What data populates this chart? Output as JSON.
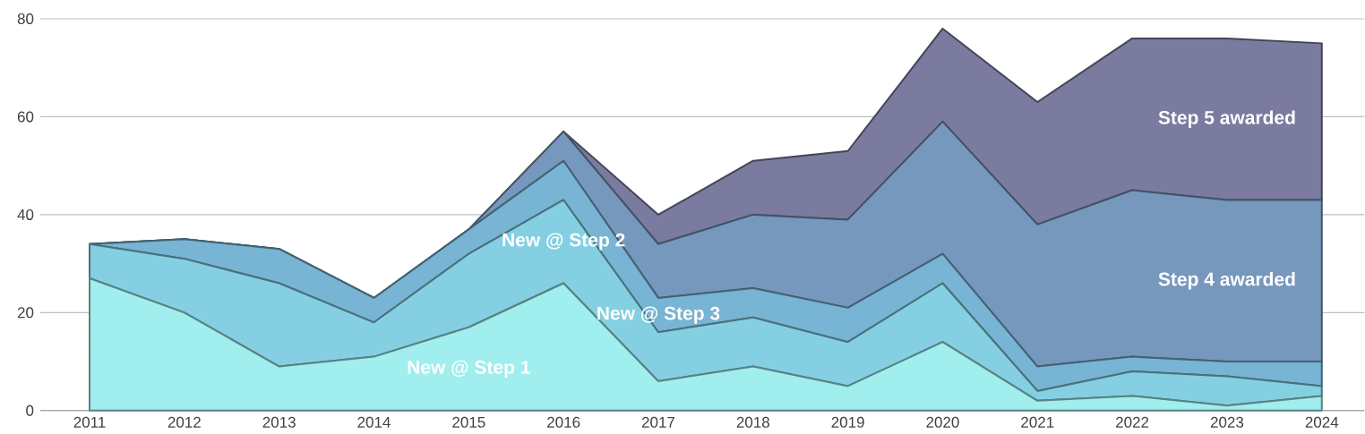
{
  "chart_data": {
    "type": "area",
    "stacked": true,
    "categories": [
      "2011",
      "2012",
      "2013",
      "2014",
      "2015",
      "2016",
      "2017",
      "2018",
      "2019",
      "2020",
      "2021",
      "2022",
      "2023",
      "2024"
    ],
    "series": [
      {
        "name": "New @ Step 1",
        "color": "#a0eeee",
        "values": [
          27,
          20,
          9,
          11,
          17,
          26,
          6,
          9,
          5,
          14,
          2,
          3,
          1,
          3
        ]
      },
      {
        "name": "New @ Step 2",
        "color": "#84d0e2",
        "values": [
          7,
          11,
          17,
          7,
          15,
          17,
          10,
          10,
          9,
          12,
          2,
          5,
          6,
          2
        ]
      },
      {
        "name": "New @ Step 3",
        "color": "#78b4d3",
        "values": [
          0,
          4,
          7,
          5,
          5,
          8,
          7,
          6,
          7,
          6,
          5,
          3,
          3,
          5
        ]
      },
      {
        "name": "Step 4 awarded",
        "color": "#7798bd",
        "values": [
          0,
          0,
          0,
          0,
          0,
          6,
          11,
          15,
          18,
          27,
          29,
          34,
          33,
          33
        ]
      },
      {
        "name": "Step 5 awarded",
        "color": "#7a7b9f",
        "values": [
          0,
          0,
          0,
          0,
          0,
          0,
          6,
          11,
          14,
          19,
          25,
          31,
          33,
          32
        ]
      }
    ],
    "ylim": [
      0,
      80
    ],
    "yticks": [
      0,
      20,
      40,
      60,
      80
    ],
    "grid": "y",
    "legend": false
  }
}
